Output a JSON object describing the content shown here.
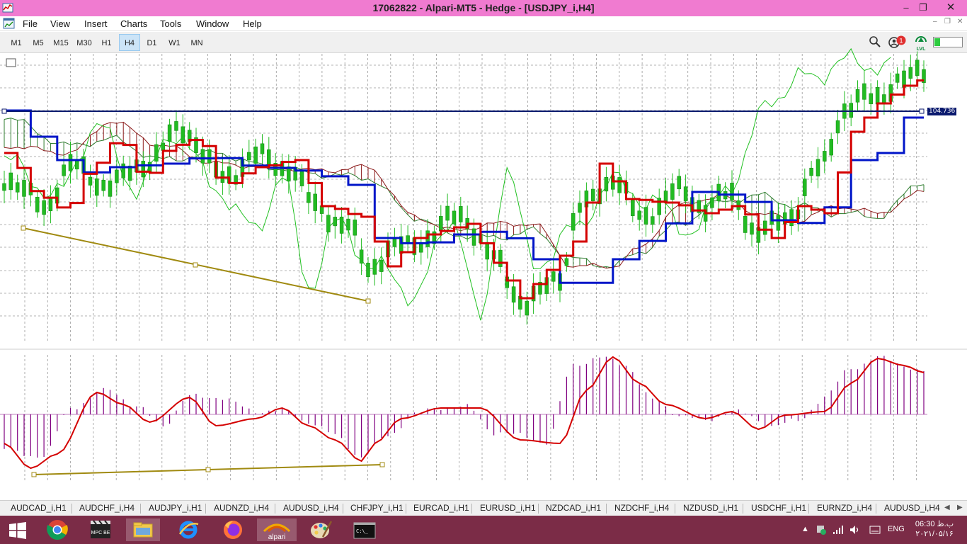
{
  "window": {
    "title": "17062822 - Alpari-MT5 - Hedge - [USDJPY_i,H4]",
    "minimize_icon": "minimize-icon",
    "restore_icon": "restore-icon",
    "close_icon": "close-icon"
  },
  "menu": {
    "items": [
      "File",
      "View",
      "Insert",
      "Charts",
      "Tools",
      "Window",
      "Help"
    ]
  },
  "toolbar": {
    "timeframes": [
      "M1",
      "M5",
      "M15",
      "M30",
      "H1",
      "H4",
      "D1",
      "W1",
      "MN"
    ],
    "active_timeframe": "H4",
    "notification_count": "1",
    "icons": [
      "search-icon",
      "notifications-icon",
      "lvl-icon"
    ],
    "lvl_label": "LVL",
    "lvl_fraction": 0.2
  },
  "chart": {
    "symbol": "USDJPY_i",
    "timeframe": "H4",
    "current_price_label": "104.736",
    "colors": {
      "tenkan": "#d40000",
      "kijun": "#0015c8",
      "chikou": "#20c020",
      "bull_candle": "#22bb22",
      "cloud_bull": "#2f7d2f",
      "cloud_bear": "#8b1a1a",
      "macd_hist": "#800080",
      "macd_signal": "#d40000",
      "trendline": "#a08a10",
      "price_line": "#0b1a6e"
    }
  },
  "chart_data": {
    "type": "line",
    "title": "USDJPY_i,H4",
    "indicators": [
      "Ichimoku Kinko Hyo",
      "MACD"
    ],
    "x_count": 140,
    "current_price": 104.736,
    "grid": true,
    "price_scale_visible": false
  },
  "symbol_tabs": [
    "AUDCAD_i,H1",
    "AUDCHF_i,H4",
    "AUDJPY_i,H1",
    "AUDNZD_i,H4",
    "AUDUSD_i,H4",
    "CHFJPY_i,H1",
    "EURCAD_i,H1",
    "EURUSD_i,H1",
    "NZDCAD_i,H1",
    "NZDCHF_i,H4",
    "NZDUSD_i,H1",
    "USDCHF_i,H1",
    "EURNZD_i,H4",
    "AUDUSD_i,H4"
  ],
  "taskbar": {
    "apps": [
      "windows-start-icon",
      "chrome-icon",
      "mpc-be-icon",
      "file-explorer-icon",
      "internet-explorer-icon",
      "firefox-icon",
      "alpari-icon",
      "paint-icon",
      "cmd-icon"
    ],
    "mpc_label": "MPC BE",
    "alpari_label": "alpari",
    "cmd_label": "C:\\_",
    "language": "ENG",
    "time": "06:30 ب.ظ",
    "date": "۲۰۲۱/۰۵/۱۶"
  }
}
